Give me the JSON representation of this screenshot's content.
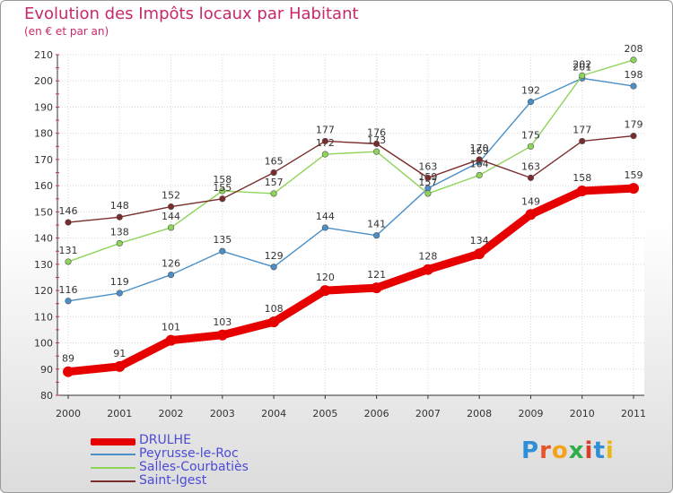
{
  "title": "Evolution des Impôts locaux par Habitant",
  "subtitle": "(en € et par an)",
  "brand": {
    "text": "Proxiti",
    "colors": [
      "#2e8fd6",
      "#e8542a",
      "#f2a31a",
      "#2eae4a",
      "#d6402a",
      "#2e8fd6",
      "#e8b81a"
    ]
  },
  "chart_data": {
    "type": "line",
    "title": "Evolution des Impôts locaux par Habitant",
    "subtitle": "(en € et par an)",
    "xlabel": "",
    "ylabel": "",
    "x": [
      "2000",
      "2001",
      "2002",
      "2003",
      "2004",
      "2005",
      "2006",
      "2007",
      "2008",
      "2009",
      "2010",
      "2011"
    ],
    "ylim": [
      80,
      210
    ],
    "yticks": [
      "80",
      "90",
      "100",
      "110",
      "120",
      "130",
      "140",
      "150",
      "160",
      "170",
      "180",
      "190",
      "200",
      "210"
    ],
    "grid": true,
    "legend_position": "bottom-left",
    "series": [
      {
        "name": "Peyrusse-le-Roc",
        "color": "#4a8fc8",
        "values": [
          116,
          119,
          126,
          135,
          129,
          144,
          141,
          159,
          169,
          192,
          201,
          198
        ],
        "labels": [
          "116",
          "119",
          "126",
          "135",
          "129",
          "144",
          "141",
          "159",
          "169",
          "192",
          "201",
          "198"
        ]
      },
      {
        "name": "Salles-Courbatiès",
        "color": "#8ed45a",
        "values": [
          131,
          138,
          144,
          158,
          157,
          172,
          173,
          157,
          164,
          175,
          202,
          208
        ],
        "labels": [
          "131",
          "138",
          "144",
          "158",
          "157",
          "172",
          "173",
          "157",
          "164",
          "175",
          "202",
          "208"
        ]
      },
      {
        "name": "Saint-Igest",
        "color": "#7a2c2c",
        "values": [
          146,
          148,
          152,
          155,
          165,
          177,
          176,
          163,
          170,
          163,
          177,
          179
        ],
        "labels": [
          "146",
          "148",
          "152",
          "155",
          "165",
          "177",
          "176",
          "163",
          "170",
          "163",
          "177",
          "179"
        ]
      },
      {
        "name": "DRULHE",
        "color": "#e60000",
        "values": [
          89,
          91,
          101,
          103,
          108,
          120,
          121,
          128,
          134,
          149,
          158,
          159
        ],
        "labels": [
          "89",
          "91",
          "101",
          "103",
          "108",
          "120",
          "121",
          "128",
          "134",
          "149",
          "158",
          "159"
        ]
      }
    ],
    "legend": [
      "DRULHE",
      "Peyrusse-le-Roc",
      "Salles-Courbatiès",
      "Saint-Igest"
    ]
  }
}
